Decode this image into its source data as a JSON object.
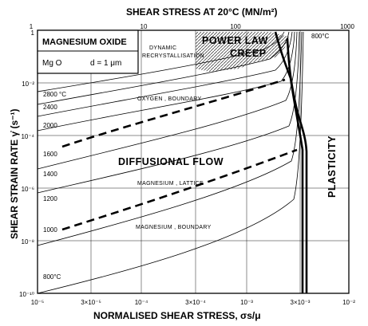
{
  "diagram": {
    "top_axis_title": "SHEAR STRESS AT 20°C (MN/m²)",
    "bottom_axis_title": "NORMALISED SHEAR STRESS, σs/μ",
    "left_axis_title": "SHEAR STRAIN RATE γ̇ (s⁻¹)",
    "material": "MAGNESIUM OXIDE",
    "formula": "Mg O",
    "grain_size": "d = 1 μm",
    "top_ticks": [
      "1",
      "10",
      "100",
      "1000"
    ],
    "bottom_ticks": [
      "10⁻⁵",
      "3×10⁻⁵",
      "10⁻⁴",
      "3×10⁻⁴",
      "10⁻³",
      "3×10⁻³",
      "10⁻²"
    ],
    "left_ticks": [
      "1",
      "10⁻²",
      "10⁻⁴",
      "10⁻⁶",
      "10⁻⁸",
      "10⁻¹⁰"
    ],
    "fields": {
      "power_law": "POWER LAW",
      "creep": "CREEP",
      "diffusional_flow": "DIFFUSIONAL FLOW",
      "plasticity": "PLASTICITY",
      "dynamic_recrystallisation_1": "DYNAMIC",
      "dynamic_recrystallisation_2": "RECRYSTALLISATION",
      "oxygen_boundary": "OXYGEN , BOUNDARY",
      "magnesium_lattice": "MAGNESIUM , LATTICE",
      "magnesium_boundary": "MAGNESIUM , BOUNDARY"
    },
    "temperature_labels": [
      "2800 °C",
      "2400",
      "2000",
      "1600",
      "1400",
      "1200",
      "1000",
      "800°C",
      "800°C"
    ],
    "temperature_label_values": [
      2800,
      2400,
      2000,
      1600,
      1400,
      1200,
      1000,
      800,
      800
    ]
  }
}
